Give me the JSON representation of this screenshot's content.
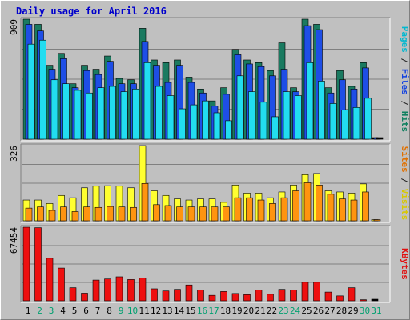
{
  "chart_data": {
    "title": "Daily usage for April 2016",
    "type": "bar",
    "days": [
      "1",
      "2",
      "3",
      "4",
      "5",
      "6",
      "7",
      "8",
      "9",
      "10",
      "11",
      "12",
      "13",
      "14",
      "15",
      "16",
      "17",
      "18",
      "19",
      "20",
      "21",
      "22",
      "23",
      "24",
      "25",
      "26",
      "27",
      "28",
      "29",
      "30",
      "31"
    ],
    "weekend_days": [
      "2",
      "3",
      "9",
      "10",
      "16",
      "17",
      "23",
      "24",
      "30",
      "31"
    ],
    "panels": [
      {
        "id": "hits-files-pages",
        "max_label": "909",
        "max": 909,
        "legend": [
          {
            "text": "Pages",
            "color": "#00b8d0"
          },
          {
            "text": " / ",
            "color": "#202020"
          },
          {
            "text": "Files",
            "color": "#1040e0"
          },
          {
            "text": " / ",
            "color": "#202020"
          },
          {
            "text": "Hits",
            "color": "#108060"
          }
        ],
        "series": [
          {
            "name": "Hits",
            "color": "#1a7a60",
            "values": [
              909,
              870,
              560,
              650,
              420,
              560,
              530,
              630,
              460,
              450,
              840,
              600,
              580,
              600,
              470,
              380,
              290,
              390,
              680,
              600,
              580,
              520,
              730,
              390,
              909,
              870,
              390,
              520,
              400,
              580,
              0
            ]
          },
          {
            "name": "Files",
            "color": "#1e4ee6",
            "values": [
              870,
              820,
              530,
              610,
              390,
              520,
              490,
              590,
              420,
              420,
              740,
              560,
              430,
              560,
              430,
              350,
              250,
              340,
              640,
              570,
              550,
              480,
              530,
              360,
              860,
              830,
              350,
              450,
              380,
              540,
              10
            ]
          },
          {
            "name": "Pages",
            "color": "#22ddf0",
            "values": [
              720,
              750,
              450,
              420,
              370,
              350,
              390,
              400,
              360,
              380,
              580,
              400,
              330,
              230,
              260,
              290,
              200,
              140,
              480,
              360,
              280,
              170,
              360,
              330,
              580,
              440,
              270,
              220,
              240,
              310,
              0
            ]
          }
        ]
      },
      {
        "id": "visits-sites",
        "max_label": "326",
        "max": 326,
        "legend": [
          {
            "text": "Sites",
            "color": "#e07000"
          },
          {
            "text": " / ",
            "color": "#202020"
          },
          {
            "text": "Visits",
            "color": "#d8c800"
          }
        ],
        "series": [
          {
            "name": "Visits",
            "color": "#ffff30",
            "values": [
              90,
              90,
              75,
              110,
              100,
              143,
              150,
              152,
              150,
              143,
              326,
              130,
              110,
              95,
              90,
              95,
              95,
              80,
              155,
              120,
              120,
              100,
              125,
              155,
              200,
              205,
              130,
              125,
              120,
              160,
              5
            ]
          },
          {
            "name": "Sites",
            "color": "#ff9410",
            "values": [
              55,
              60,
              45,
              60,
              40,
              60,
              58,
              62,
              60,
              58,
              162,
              70,
              66,
              60,
              60,
              60,
              60,
              60,
              100,
              100,
              90,
              75,
              100,
              130,
              165,
              155,
              115,
              95,
              90,
              125,
              5
            ]
          }
        ]
      },
      {
        "id": "kbytes",
        "max_label": "67454",
        "max": 67454,
        "legend": [
          {
            "text": "KBytes",
            "color": "#e01010"
          }
        ],
        "series": [
          {
            "name": "KBytes",
            "color": "#ee1010",
            "values": [
              67454,
              67000,
              39000,
              30000,
              12000,
              7000,
              19000,
              20000,
              22000,
              19500,
              21000,
              11000,
              9000,
              10500,
              14500,
              10000,
              5000,
              8500,
              6700,
              5600,
              10000,
              6000,
              10500,
              10000,
              17000,
              17000,
              8000,
              4500,
              12000,
              1000,
              0
            ]
          }
        ]
      }
    ]
  }
}
